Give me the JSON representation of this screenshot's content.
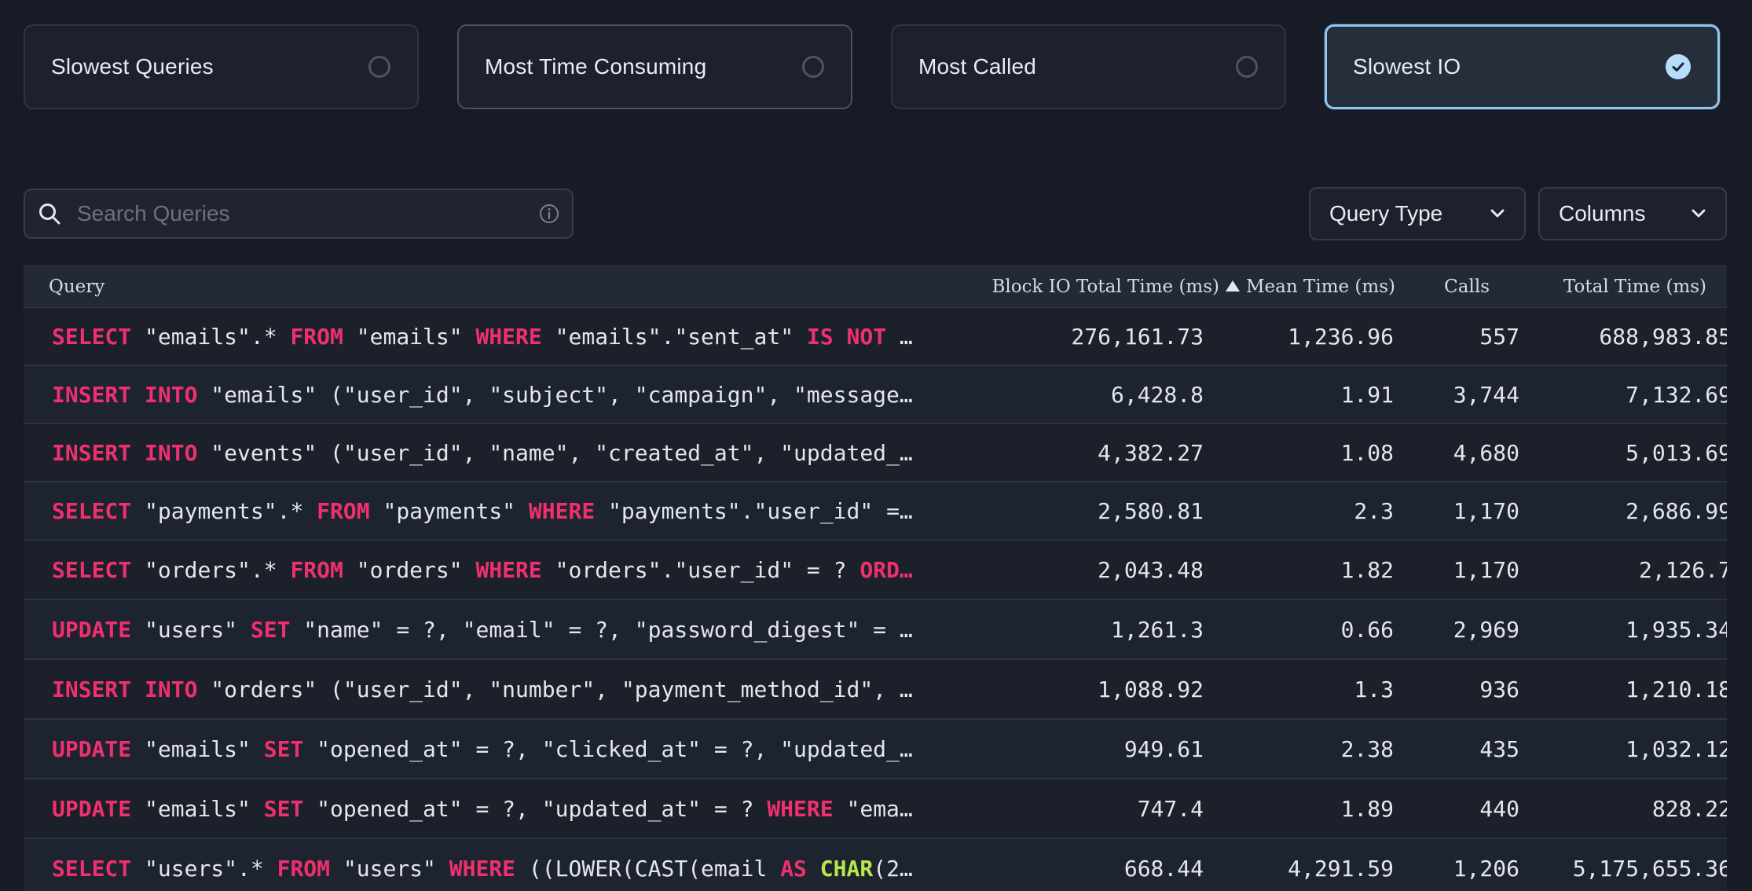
{
  "presets": [
    {
      "label": "Slowest Queries",
      "selected": false
    },
    {
      "label": "Most Time Consuming",
      "selected": false
    },
    {
      "label": "Most Called",
      "selected": false
    },
    {
      "label": "Slowest IO",
      "selected": true
    }
  ],
  "search": {
    "placeholder": "Search Queries",
    "value": ""
  },
  "filters": {
    "query_type": "Query Type",
    "columns": "Columns"
  },
  "table": {
    "headers": {
      "query": "Query",
      "block_io": "Block IO Total Time (ms)",
      "mean_time": "Mean Time (ms)",
      "calls": "Calls",
      "total_time": "Total Time (ms)"
    },
    "sort": {
      "column": "block_io",
      "direction": "ascending-indicator"
    },
    "rows": [
      {
        "query": [
          [
            "kw",
            "SELECT"
          ],
          [
            "t",
            " \"emails\".* "
          ],
          [
            "kw",
            "FROM"
          ],
          [
            "t",
            " \"emails\" "
          ],
          [
            "kw",
            "WHERE"
          ],
          [
            "t",
            " \"emails\".\"sent_at\" "
          ],
          [
            "kw",
            "IS"
          ],
          [
            "t",
            " "
          ],
          [
            "kw",
            "NOT"
          ],
          [
            "t",
            " …"
          ]
        ],
        "block_io": "276,161.73",
        "mean_time": "1,236.96",
        "calls": "557",
        "total_time": "688,983.85"
      },
      {
        "query": [
          [
            "kw",
            "INSERT"
          ],
          [
            "t",
            " "
          ],
          [
            "kw",
            "INTO"
          ],
          [
            "t",
            " \"emails\" (\"user_id\", \"subject\", \"campaign\", \"message…"
          ]
        ],
        "block_io": "6,428.8",
        "mean_time": "1.91",
        "calls": "3,744",
        "total_time": "7,132.69"
      },
      {
        "query": [
          [
            "kw",
            "INSERT"
          ],
          [
            "t",
            " "
          ],
          [
            "kw",
            "INTO"
          ],
          [
            "t",
            " \"events\" (\"user_id\", \"name\", \"created_at\", \"updated_…"
          ]
        ],
        "block_io": "4,382.27",
        "mean_time": "1.08",
        "calls": "4,680",
        "total_time": "5,013.69"
      },
      {
        "query": [
          [
            "kw",
            "SELECT"
          ],
          [
            "t",
            " \"payments\".* "
          ],
          [
            "kw",
            "FROM"
          ],
          [
            "t",
            " \"payments\" "
          ],
          [
            "kw",
            "WHERE"
          ],
          [
            "t",
            " \"payments\".\"user_id\" =…"
          ]
        ],
        "block_io": "2,580.81",
        "mean_time": "2.3",
        "calls": "1,170",
        "total_time": "2,686.99"
      },
      {
        "query": [
          [
            "kw",
            "SELECT"
          ],
          [
            "t",
            " \"orders\".* "
          ],
          [
            "kw",
            "FROM"
          ],
          [
            "t",
            " \"orders\" "
          ],
          [
            "kw",
            "WHERE"
          ],
          [
            "t",
            " \"orders\".\"user_id\" = ? "
          ],
          [
            "kw",
            "ORD…"
          ]
        ],
        "block_io": "2,043.48",
        "mean_time": "1.82",
        "calls": "1,170",
        "total_time": "2,126.7"
      },
      {
        "query": [
          [
            "kw",
            "UPDATE"
          ],
          [
            "t",
            " \"users\" "
          ],
          [
            "kw",
            "SET"
          ],
          [
            "t",
            " \"name\" = ?, \"email\" = ?, \"password_digest\" = …"
          ]
        ],
        "block_io": "1,261.3",
        "mean_time": "0.66",
        "calls": "2,969",
        "total_time": "1,935.34"
      },
      {
        "query": [
          [
            "kw",
            "INSERT"
          ],
          [
            "t",
            " "
          ],
          [
            "kw",
            "INTO"
          ],
          [
            "t",
            " \"orders\" (\"user_id\", \"number\", \"payment_method_id\", …"
          ]
        ],
        "block_io": "1,088.92",
        "mean_time": "1.3",
        "calls": "936",
        "total_time": "1,210.18"
      },
      {
        "query": [
          [
            "kw",
            "UPDATE"
          ],
          [
            "t",
            " \"emails\" "
          ],
          [
            "kw",
            "SET"
          ],
          [
            "t",
            " \"opened_at\" = ?, \"clicked_at\" = ?, \"updated_…"
          ]
        ],
        "block_io": "949.61",
        "mean_time": "2.38",
        "calls": "435",
        "total_time": "1,032.12"
      },
      {
        "query": [
          [
            "kw",
            "UPDATE"
          ],
          [
            "t",
            " \"emails\" "
          ],
          [
            "kw",
            "SET"
          ],
          [
            "t",
            " \"opened_at\" = ?, \"updated_at\" = ? "
          ],
          [
            "kw",
            "WHERE"
          ],
          [
            "t",
            " \"ema…"
          ]
        ],
        "block_io": "747.4",
        "mean_time": "1.89",
        "calls": "440",
        "total_time": "828.22"
      },
      {
        "query": [
          [
            "kw",
            "SELECT"
          ],
          [
            "t",
            " \"users\".* "
          ],
          [
            "kw",
            "FROM"
          ],
          [
            "t",
            " \"users\" "
          ],
          [
            "kw",
            "WHERE"
          ],
          [
            "t",
            " ((LOWER(CAST(email "
          ],
          [
            "kw",
            "AS"
          ],
          [
            "t",
            " "
          ],
          [
            "fn",
            "CHAR"
          ],
          [
            "t",
            "(2…"
          ]
        ],
        "block_io": "668.44",
        "mean_time": "4,291.59",
        "calls": "1,206",
        "total_time": "5,175,655.36"
      }
    ]
  },
  "colors": {
    "background": "#171b26",
    "accent_selected_border": "#8ec7f0",
    "keyword": "#f0306e",
    "function": "#b5e84a"
  }
}
